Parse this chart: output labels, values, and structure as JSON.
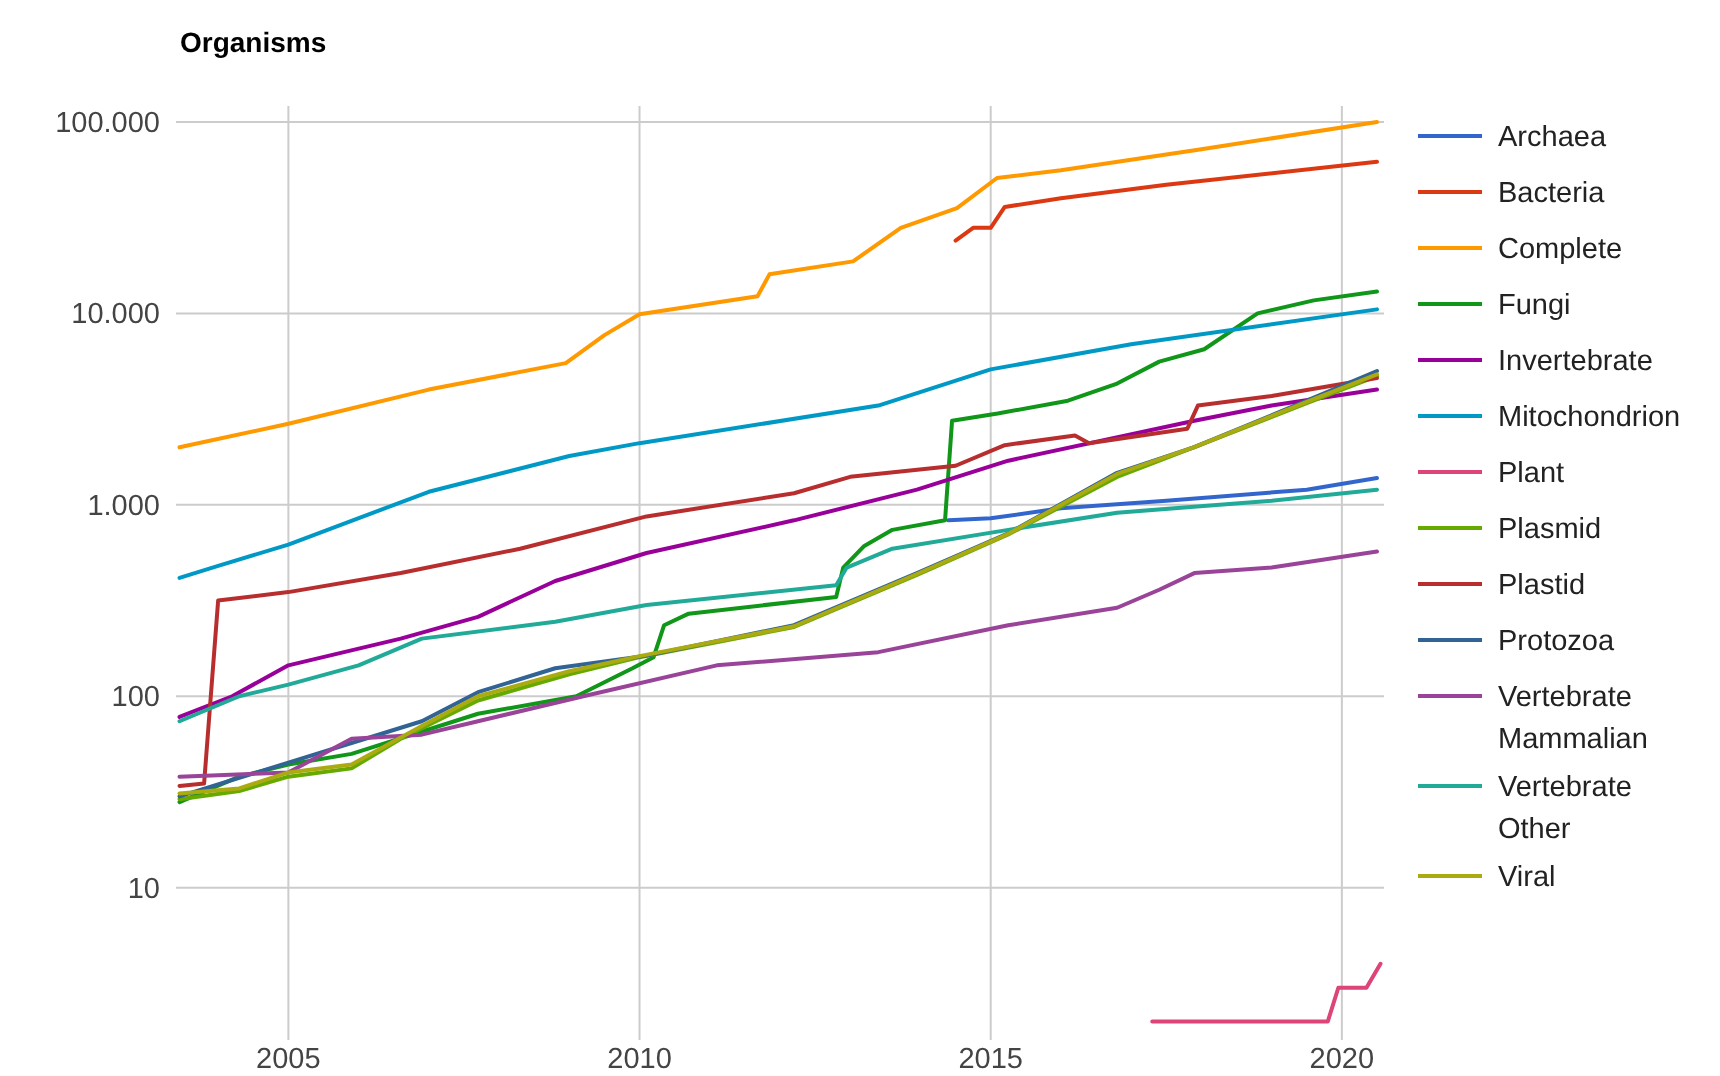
{
  "chart_data": {
    "type": "line",
    "title": "Organisms",
    "log": true,
    "grid": true,
    "legend": "right",
    "xlim": [
      2003.4,
      2020.6
    ],
    "xticks": [
      2005,
      2010,
      2015,
      2020
    ],
    "ylim": [
      1.6,
      100000
    ],
    "yticks": [
      10,
      100,
      {
        "value": 1000,
        "label": "1.000"
      },
      {
        "value": 10000,
        "label": "10.000"
      },
      {
        "value": 100000,
        "label": "100.000"
      }
    ],
    "series": [
      {
        "name": "Archaea",
        "color": "#3366cc",
        "x": [
          2014.4,
          2015,
          2016,
          2017.5,
          2019.5,
          2020.5
        ],
        "values": [
          830,
          850,
          960,
          1050,
          1200,
          1380
        ]
      },
      {
        "name": "Bacteria",
        "color": "#dc3912",
        "x": [
          2014.5,
          2014.75,
          2015,
          2015.2,
          2016,
          2017.5,
          2020.5
        ],
        "values": [
          24000,
          28000,
          28000,
          36000,
          40000,
          47000,
          62000
        ]
      },
      {
        "name": "Complete",
        "color": "#ff9900",
        "x": [
          2003.45,
          2005,
          2007,
          2008.95,
          2009.5,
          2010,
          2011.68,
          2011.85,
          2013.04,
          2013.72,
          2014.52,
          2015.09,
          2016,
          2018,
          2020.5
        ],
        "values": [
          2000,
          2650,
          4000,
          5500,
          7700,
          9900,
          12300,
          16000,
          18700,
          28000,
          35500,
          51000,
          56000,
          72000,
          100000
        ]
      },
      {
        "name": "Fungi",
        "color": "#109618",
        "x": [
          2003.45,
          2004.3,
          2005,
          2005.9,
          2007.7,
          2009.1,
          2009.9,
          2010.2,
          2010.35,
          2010.7,
          2012.8,
          2012.9,
          2013.2,
          2013.6,
          2014.35,
          2014.45,
          2015.1,
          2016.1,
          2016.8,
          2017.4,
          2018.04,
          2018.8,
          2019.6,
          2020.5
        ],
        "values": [
          28,
          38,
          44,
          50,
          81,
          100,
          140,
          160,
          235,
          270,
          330,
          470,
          610,
          740,
          830,
          2750,
          3000,
          3500,
          4300,
          5600,
          6500,
          10000,
          11700,
          13000
        ]
      },
      {
        "name": "Invertebrate",
        "color": "#990099",
        "x": [
          2003.45,
          2004.2,
          2005,
          2006.6,
          2007.7,
          2008.8,
          2010.1,
          2012.2,
          2013.95,
          2015.25,
          2017.9,
          2019,
          2020.5
        ],
        "values": [
          78,
          100,
          145,
          200,
          260,
          400,
          560,
          830,
          1200,
          1700,
          2750,
          3300,
          4000
        ]
      },
      {
        "name": "Mitochondrion",
        "color": "#0099c6",
        "x": [
          2003.45,
          2004,
          2005,
          2007,
          2009,
          2010,
          2013.4,
          2015,
          2017,
          2020.5
        ],
        "values": [
          415,
          480,
          620,
          1170,
          1800,
          2100,
          3300,
          5100,
          6900,
          10500
        ]
      },
      {
        "name": "Plant",
        "color": "#dd4477",
        "x": [
          2017.3,
          2019.8,
          2019.95,
          2020.35,
          2020.55
        ],
        "values": [
          2,
          2,
          3,
          3,
          4
        ]
      },
      {
        "name": "Plasmid",
        "color": "#66aa00",
        "x": [
          2003.45,
          2004.3,
          2005,
          2005.9,
          2006.6,
          2007.7,
          2009,
          2010,
          2012.2,
          2013.95,
          2015.25,
          2016.8,
          2017.9,
          2019.5,
          2020.5
        ],
        "values": [
          29,
          32,
          38,
          42,
          60,
          95,
          130,
          160,
          230,
          430,
          700,
          1400,
          2000,
          3400,
          4700
        ]
      },
      {
        "name": "Plastid",
        "color": "#b82e2e",
        "x": [
          2003.45,
          2003.8,
          2004,
          2005,
          2006.6,
          2008.3,
          2010.1,
          2012.2,
          2013,
          2014.5,
          2015.2,
          2016.2,
          2016.4,
          2017.8,
          2017.95,
          2019,
          2020.5
        ],
        "values": [
          34,
          35,
          316,
          350,
          440,
          590,
          870,
          1150,
          1400,
          1600,
          2050,
          2300,
          2100,
          2500,
          3300,
          3700,
          4600
        ]
      },
      {
        "name": "Protozoa",
        "color": "#316395",
        "x": [
          2003.45,
          2005,
          2006.9,
          2007.7,
          2008.8,
          2010.1,
          2012.2,
          2013.95,
          2015.25,
          2016.8,
          2017.9,
          2019.5,
          2020.5
        ],
        "values": [
          30,
          45,
          74,
          105,
          140,
          163,
          235,
          440,
          710,
          1470,
          2000,
          3500,
          5000
        ]
      },
      {
        "name": "Vertebrate Mammalian",
        "color": "#994499",
        "x": [
          2003.45,
          2005,
          2005.9,
          2006.9,
          2007.7,
          2009.2,
          2011.1,
          2013.4,
          2015.25,
          2016.8,
          2017.4,
          2017.9,
          2019,
          2020.5
        ],
        "values": [
          38,
          40,
          60,
          63,
          74,
          100,
          145,
          170,
          235,
          290,
          360,
          440,
          470,
          570
        ]
      },
      {
        "name": "Vertebrate Other",
        "color": "#22aa99",
        "x": [
          2003.45,
          2004.3,
          2005,
          2006,
          2006.9,
          2008.8,
          2010.1,
          2012.8,
          2012.95,
          2013.6,
          2015.25,
          2016.8,
          2019,
          2020.5
        ],
        "values": [
          74,
          100,
          115,
          145,
          200,
          245,
          300,
          380,
          470,
          590,
          740,
          910,
          1050,
          1200
        ]
      },
      {
        "name": "Viral",
        "color": "#aaaa11",
        "x": [
          2003.45,
          2004.3,
          2005,
          2005.9,
          2006.9,
          2007.7,
          2009,
          2010,
          2012.2,
          2013.95,
          2015.25,
          2016.8,
          2017.9,
          2019.5,
          2020.5
        ],
        "values": [
          31,
          33,
          40,
          44,
          70,
          100,
          135,
          162,
          232,
          435,
          705,
          1450,
          2000,
          3450,
          4800
        ]
      }
    ]
  }
}
